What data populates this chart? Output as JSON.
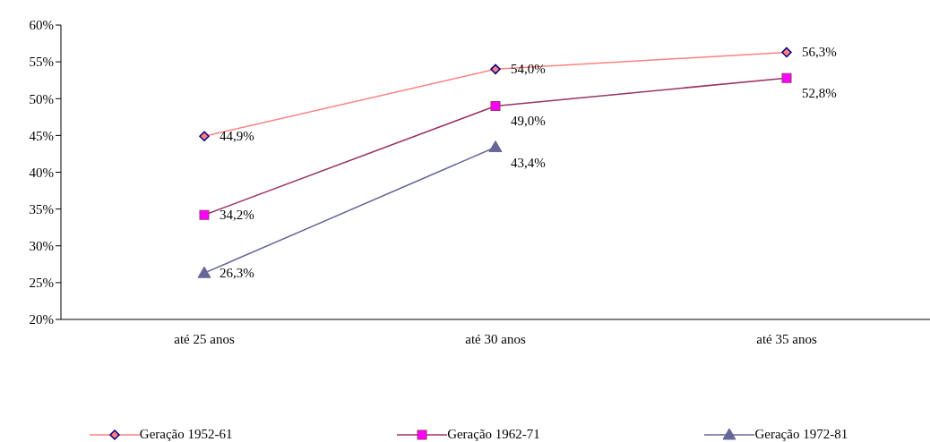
{
  "chart_data": {
    "type": "line",
    "categories": [
      "até 25 anos",
      "até 30 anos",
      "até 35 anos"
    ],
    "series": [
      {
        "name": "Geração 1952-61",
        "color": "#ff8080",
        "marker": "diamond",
        "values": [
          44.9,
          54.0,
          56.3
        ],
        "value_labels": [
          "44,9%",
          "54,0%",
          "56,3%"
        ]
      },
      {
        "name": "Geração 1962-71",
        "color": "#993366",
        "marker": "square",
        "values": [
          34.2,
          49.0,
          52.8
        ],
        "value_labels": [
          "34,2%",
          "49,0%",
          "52,8%"
        ]
      },
      {
        "name": "Geração 1972-81",
        "color": "#666699",
        "marker": "triangle",
        "values": [
          26.3,
          43.4,
          null
        ],
        "value_labels": [
          "26,3%",
          "43,4%",
          null
        ]
      }
    ],
    "ylim": [
      20,
      60
    ],
    "yticks": [
      {
        "value": 20,
        "label": "20%"
      },
      {
        "value": 25,
        "label": "25%"
      },
      {
        "value": 30,
        "label": "30%"
      },
      {
        "value": 35,
        "label": "35%"
      },
      {
        "value": 40,
        "label": "40%"
      },
      {
        "value": 45,
        "label": "45%"
      },
      {
        "value": 50,
        "label": "50%"
      },
      {
        "value": 55,
        "label": "55%"
      },
      {
        "value": 60,
        "label": "60%"
      }
    ],
    "grid": false,
    "legend": "bottom"
  }
}
